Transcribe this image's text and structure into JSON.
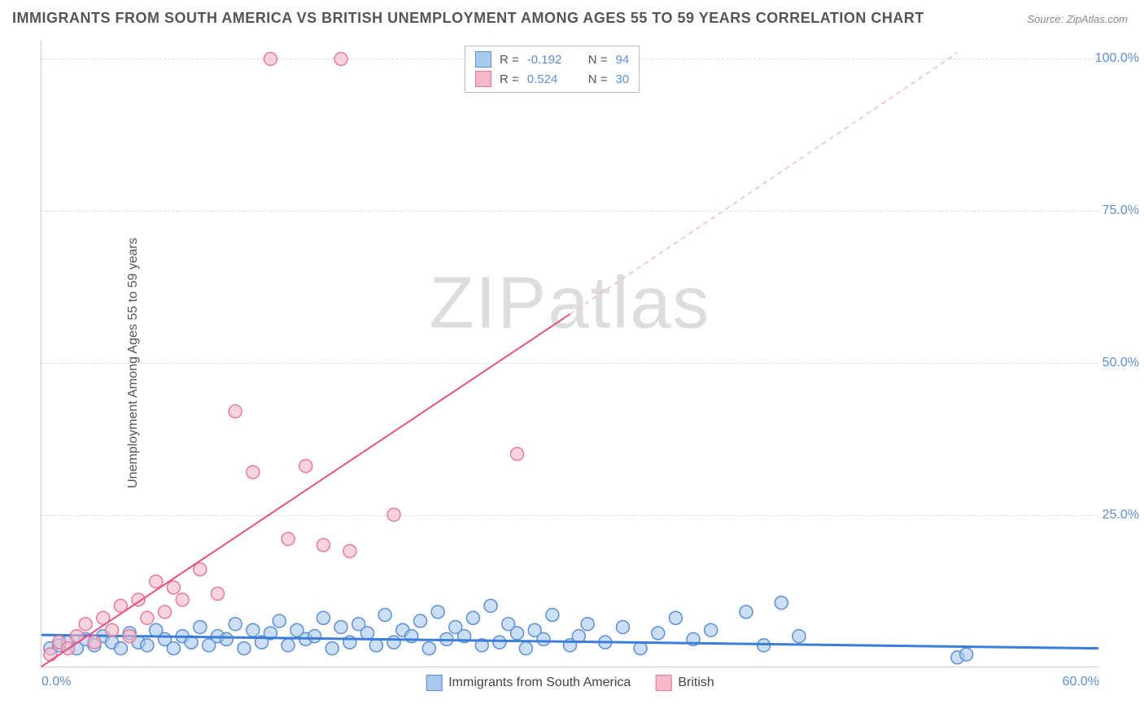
{
  "title": "IMMIGRANTS FROM SOUTH AMERICA VS BRITISH UNEMPLOYMENT AMONG AGES 55 TO 59 YEARS CORRELATION CHART",
  "source": "Source: ZipAtlas.com",
  "y_axis_label": "Unemployment Among Ages 55 to 59 years",
  "watermark": "ZIPatlas",
  "chart": {
    "type": "scatter",
    "xlim": [
      0,
      60
    ],
    "ylim": [
      0,
      103
    ],
    "x_ticks": [
      {
        "value": 0,
        "label": "0.0%"
      },
      {
        "value": 60,
        "label": "60.0%"
      }
    ],
    "y_ticks": [
      {
        "value": 25,
        "label": "25.0%"
      },
      {
        "value": 50,
        "label": "50.0%"
      },
      {
        "value": 75,
        "label": "75.0%"
      },
      {
        "value": 100,
        "label": "100.0%"
      }
    ],
    "grid_color": "#dddddd",
    "background_color": "#ffffff",
    "series": [
      {
        "name": "Immigrants from South America",
        "color_fill": "#a8c8ed",
        "color_stroke": "#5b8fd6",
        "marker_radius": 8,
        "marker_opacity": 0.6,
        "R": "-0.192",
        "N": "94",
        "trend": {
          "x1": 0,
          "y1": 5.2,
          "x2": 60,
          "y2": 3.0,
          "stroke": "#3b7dd8",
          "width": 3,
          "dash": "none"
        },
        "points": [
          [
            0.5,
            3
          ],
          [
            1,
            3.5
          ],
          [
            1.5,
            4
          ],
          [
            2,
            3
          ],
          [
            2.5,
            4.5
          ],
          [
            3,
            3.5
          ],
          [
            3.5,
            5
          ],
          [
            4,
            4
          ],
          [
            4.5,
            3
          ],
          [
            5,
            5.5
          ],
          [
            5.5,
            4
          ],
          [
            6,
            3.5
          ],
          [
            6.5,
            6
          ],
          [
            7,
            4.5
          ],
          [
            7.5,
            3
          ],
          [
            8,
            5
          ],
          [
            8.5,
            4
          ],
          [
            9,
            6.5
          ],
          [
            9.5,
            3.5
          ],
          [
            10,
            5
          ],
          [
            10.5,
            4.5
          ],
          [
            11,
            7
          ],
          [
            11.5,
            3
          ],
          [
            12,
            6
          ],
          [
            12.5,
            4
          ],
          [
            13,
            5.5
          ],
          [
            13.5,
            7.5
          ],
          [
            14,
            3.5
          ],
          [
            14.5,
            6
          ],
          [
            15,
            4.5
          ],
          [
            15.5,
            5
          ],
          [
            16,
            8
          ],
          [
            16.5,
            3
          ],
          [
            17,
            6.5
          ],
          [
            17.5,
            4
          ],
          [
            18,
            7
          ],
          [
            18.5,
            5.5
          ],
          [
            19,
            3.5
          ],
          [
            19.5,
            8.5
          ],
          [
            20,
            4
          ],
          [
            20.5,
            6
          ],
          [
            21,
            5
          ],
          [
            21.5,
            7.5
          ],
          [
            22,
            3
          ],
          [
            22.5,
            9
          ],
          [
            23,
            4.5
          ],
          [
            23.5,
            6.5
          ],
          [
            24,
            5
          ],
          [
            24.5,
            8
          ],
          [
            25,
            3.5
          ],
          [
            25.5,
            10
          ],
          [
            26,
            4
          ],
          [
            26.5,
            7
          ],
          [
            27,
            5.5
          ],
          [
            27.5,
            3
          ],
          [
            28,
            6
          ],
          [
            28.5,
            4.5
          ],
          [
            29,
            8.5
          ],
          [
            30,
            3.5
          ],
          [
            30.5,
            5
          ],
          [
            31,
            7
          ],
          [
            32,
            4
          ],
          [
            33,
            6.5
          ],
          [
            34,
            3
          ],
          [
            35,
            5.5
          ],
          [
            36,
            8
          ],
          [
            37,
            4.5
          ],
          [
            38,
            6
          ],
          [
            40,
            9
          ],
          [
            41,
            3.5
          ],
          [
            42,
            10.5
          ],
          [
            43,
            5
          ],
          [
            52,
            1.5
          ],
          [
            52.5,
            2
          ]
        ]
      },
      {
        "name": "British",
        "color_fill": "#f5b8c8",
        "color_stroke": "#e67a9a",
        "marker_radius": 8,
        "marker_opacity": 0.6,
        "R": "0.524",
        "N": "30",
        "trend": {
          "x1": 0,
          "y1": 0,
          "x2": 30,
          "y2": 58,
          "stroke": "#e8517c",
          "width": 2,
          "dash": "none"
        },
        "trend_ext": {
          "x1": 30,
          "y1": 58,
          "x2": 52,
          "y2": 101,
          "stroke": "#f5b8c8",
          "width": 1.5,
          "dash": "6,5"
        },
        "points": [
          [
            0.5,
            2
          ],
          [
            1,
            4
          ],
          [
            1.5,
            3
          ],
          [
            2,
            5
          ],
          [
            2.5,
            7
          ],
          [
            3,
            4
          ],
          [
            3.5,
            8
          ],
          [
            4,
            6
          ],
          [
            4.5,
            10
          ],
          [
            5,
            5
          ],
          [
            5.5,
            11
          ],
          [
            6,
            8
          ],
          [
            6.5,
            14
          ],
          [
            7,
            9
          ],
          [
            7.5,
            13
          ],
          [
            8,
            11
          ],
          [
            9,
            16
          ],
          [
            10,
            12
          ],
          [
            11,
            42
          ],
          [
            12,
            32
          ],
          [
            13,
            100
          ],
          [
            14,
            21
          ],
          [
            15,
            33
          ],
          [
            16,
            20
          ],
          [
            17,
            100
          ],
          [
            17.5,
            19
          ],
          [
            20,
            25
          ],
          [
            27,
            35
          ]
        ]
      }
    ],
    "legend_top": {
      "rows": [
        {
          "swatch_fill": "#a8c8ed",
          "swatch_stroke": "#5b8fd6",
          "r_label": "R =",
          "r_val": "-0.192",
          "n_label": "N =",
          "n_val": "94"
        },
        {
          "swatch_fill": "#f5b8c8",
          "swatch_stroke": "#e67a9a",
          "r_label": "R =",
          "r_val": "0.524",
          "n_label": "N =",
          "n_val": "30"
        }
      ]
    },
    "legend_bottom": {
      "items": [
        {
          "swatch_fill": "#a8c8ed",
          "swatch_stroke": "#5b8fd6",
          "label": "Immigrants from South America"
        },
        {
          "swatch_fill": "#f5b8c8",
          "swatch_stroke": "#e67a9a",
          "label": "British"
        }
      ]
    }
  }
}
